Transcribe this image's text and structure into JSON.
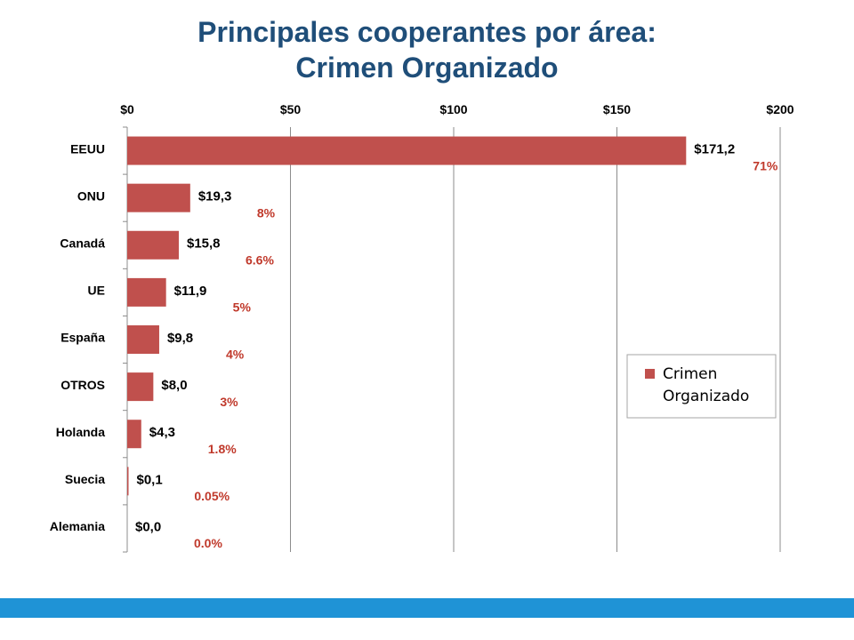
{
  "title_line1": "Principales cooperantes por área:",
  "title_line2": "Crimen Organizado",
  "chart_data": {
    "type": "bar",
    "orientation": "horizontal",
    "categories": [
      "EEUU",
      "ONU",
      "Canadá",
      "UE",
      "España",
      "OTROS",
      "Holanda",
      "Suecia",
      "Alemania"
    ],
    "series": [
      {
        "name": "Crimen Organizado",
        "values": [
          171.2,
          19.3,
          15.8,
          11.9,
          9.8,
          8.0,
          4.3,
          0.1,
          0.0
        ],
        "data_labels": [
          "$171,2",
          "$19,3",
          "$15,8",
          "$11,9",
          "$9,8",
          "$8,0",
          "$4,3",
          "$0,1",
          "$0,0"
        ],
        "share_labels": [
          "71%",
          "8%",
          "6.6%",
          "5%",
          "4%",
          "3%",
          "1.8%",
          "0.05%",
          "0.0%"
        ]
      }
    ],
    "xlim": [
      0,
      200
    ],
    "x_ticks": [
      0,
      50,
      100,
      150,
      200
    ],
    "x_tick_labels": [
      "$0",
      "$50",
      "$100",
      "$150",
      "$200"
    ],
    "x_axis_position": "top",
    "grid": true,
    "legend_position": "right",
    "colors": {
      "bar": "#c0504d",
      "share_label": "#c0392b",
      "title": "#1f4e79",
      "footer_bar": "#1f93d6",
      "gridline": "#8c8c8c"
    }
  }
}
